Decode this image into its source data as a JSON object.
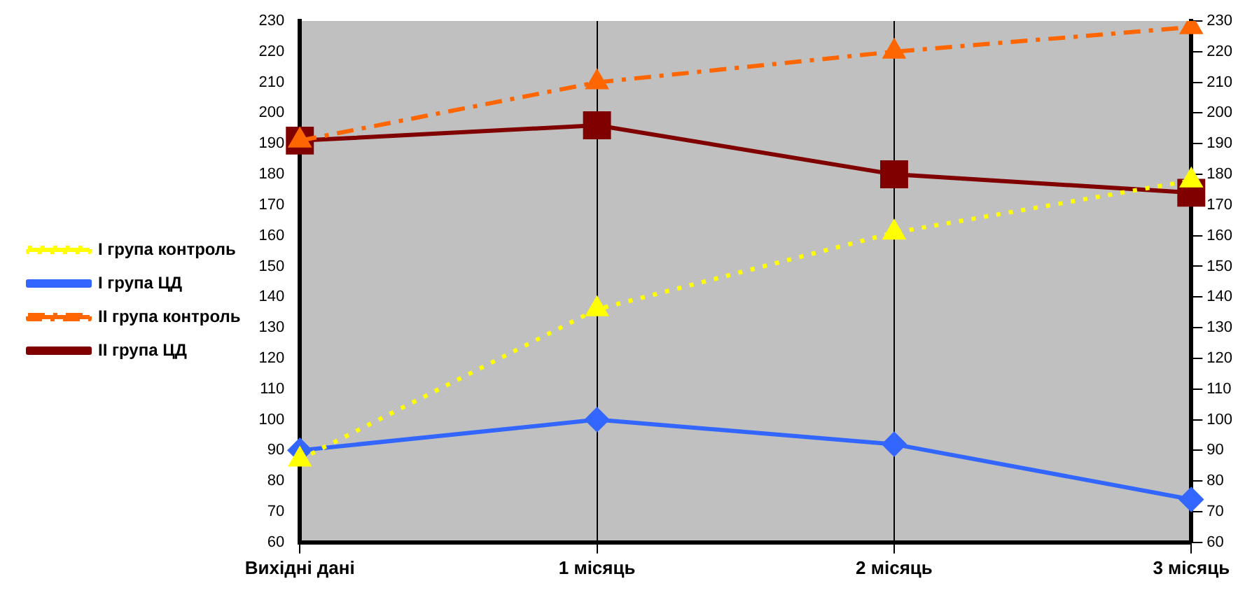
{
  "chart_data": {
    "type": "line",
    "categories": [
      "Вихідні дані",
      "1 місяць",
      "2 місяць",
      "3 місяць"
    ],
    "series": [
      {
        "name": "I група контроль",
        "color": "#ffff00",
        "values": [
          87,
          136,
          161,
          178
        ],
        "marker": "triangle",
        "line_style": "dotted"
      },
      {
        "name": "I група ЦД",
        "color": "#3366ff",
        "values": [
          90,
          100,
          92,
          74
        ],
        "marker": "diamond",
        "line_style": "solid"
      },
      {
        "name": "II група контроль",
        "color": "#ff6600",
        "values": [
          191,
          210,
          220,
          228
        ],
        "marker": "triangle",
        "line_style": "dashed"
      },
      {
        "name": "II група ЦД",
        "color": "#800000",
        "values": [
          191,
          196,
          180,
          174
        ],
        "marker": "square",
        "line_style": "solid"
      }
    ],
    "ylim": [
      60,
      230
    ],
    "yticks": [
      60,
      70,
      80,
      90,
      100,
      110,
      120,
      130,
      140,
      150,
      160,
      170,
      180,
      190,
      200,
      210,
      220,
      230
    ],
    "y2lim": [
      60,
      230
    ],
    "y2ticks": [
      60,
      70,
      80,
      90,
      100,
      110,
      120,
      130,
      140,
      150,
      160,
      170,
      180,
      190,
      200,
      210,
      220,
      230
    ],
    "grid": "x",
    "legend": "left"
  }
}
